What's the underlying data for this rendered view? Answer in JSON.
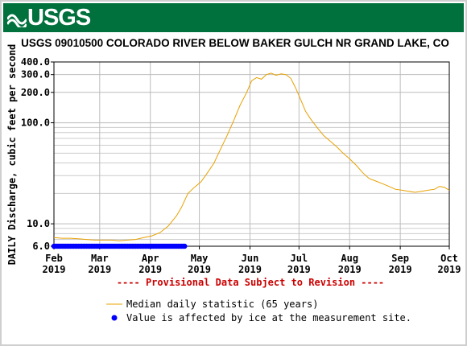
{
  "header": {
    "logo_text": "USGS",
    "brand_color": "#00703c"
  },
  "chart_data": {
    "type": "line",
    "title": "USGS 09010500 COLORADO RIVER BELOW BAKER GULCH NR GRAND LAKE, CO",
    "ylabel": "DAILY Discharge, cubic feet per second",
    "xlabel": "",
    "y_scale": "log",
    "ylim": [
      6.0,
      400.0
    ],
    "xlim": [
      "2019-02-01",
      "2019-10-01"
    ],
    "grid": true,
    "y_ticks": [
      {
        "value": 6,
        "label": "6.0"
      },
      {
        "value": 10,
        "label": "10.0"
      },
      {
        "value": 100,
        "label": "100.0"
      },
      {
        "value": 200,
        "label": "200.0"
      },
      {
        "value": 300,
        "label": "300.0"
      },
      {
        "value": 400,
        "label": "400.0"
      }
    ],
    "x_ticks": [
      {
        "date": "2019-02-01",
        "label": [
          "Feb",
          "2019"
        ]
      },
      {
        "date": "2019-03-01",
        "label": [
          "Mar",
          "2019"
        ]
      },
      {
        "date": "2019-04-01",
        "label": [
          "Apr",
          "2019"
        ]
      },
      {
        "date": "2019-05-01",
        "label": [
          "May",
          "2019"
        ]
      },
      {
        "date": "2019-06-01",
        "label": [
          "Jun",
          "2019"
        ]
      },
      {
        "date": "2019-07-01",
        "label": [
          "Jul",
          "2019"
        ]
      },
      {
        "date": "2019-08-01",
        "label": [
          "Aug",
          "2019"
        ]
      },
      {
        "date": "2019-09-01",
        "label": [
          "Sep",
          "2019"
        ]
      },
      {
        "date": "2019-10-01",
        "label": [
          "Oct",
          "2019"
        ]
      }
    ],
    "series": [
      {
        "name": "Median daily statistic (65 years)",
        "color": "#e8a000",
        "points": [
          [
            "2019-02-01",
            7.3
          ],
          [
            "2019-02-06",
            7.2
          ],
          [
            "2019-02-11",
            7.2
          ],
          [
            "2019-02-16",
            7.1
          ],
          [
            "2019-02-21",
            7.0
          ],
          [
            "2019-02-26",
            6.9
          ],
          [
            "2019-03-03",
            6.9
          ],
          [
            "2019-03-08",
            6.9
          ],
          [
            "2019-03-13",
            6.8
          ],
          [
            "2019-03-18",
            6.9
          ],
          [
            "2019-03-23",
            7.0
          ],
          [
            "2019-03-28",
            7.3
          ],
          [
            "2019-04-02",
            7.6
          ],
          [
            "2019-04-07",
            8.2
          ],
          [
            "2019-04-12",
            9.5
          ],
          [
            "2019-04-17",
            12.0
          ],
          [
            "2019-04-20",
            14.5
          ],
          [
            "2019-04-24",
            20.0
          ],
          [
            "2019-04-28",
            23.0
          ],
          [
            "2019-05-02",
            26.0
          ],
          [
            "2019-05-06",
            32.0
          ],
          [
            "2019-05-10",
            40.0
          ],
          [
            "2019-05-14",
            55.0
          ],
          [
            "2019-05-18",
            75.0
          ],
          [
            "2019-05-22",
            105.0
          ],
          [
            "2019-05-26",
            150.0
          ],
          [
            "2019-05-30",
            200.0
          ],
          [
            "2019-06-02",
            260.0
          ],
          [
            "2019-06-05",
            280.0
          ],
          [
            "2019-06-08",
            270.0
          ],
          [
            "2019-06-11",
            300.0
          ],
          [
            "2019-06-14",
            310.0
          ],
          [
            "2019-06-17",
            295.0
          ],
          [
            "2019-06-20",
            305.0
          ],
          [
            "2019-06-23",
            300.0
          ],
          [
            "2019-06-26",
            275.0
          ],
          [
            "2019-06-29",
            220.0
          ],
          [
            "2019-07-02",
            170.0
          ],
          [
            "2019-07-05",
            130.0
          ],
          [
            "2019-07-08",
            110.0
          ],
          [
            "2019-07-12",
            90.0
          ],
          [
            "2019-07-16",
            75.0
          ],
          [
            "2019-07-20",
            66.0
          ],
          [
            "2019-07-24",
            58.0
          ],
          [
            "2019-07-28",
            50.0
          ],
          [
            "2019-08-01",
            44.0
          ],
          [
            "2019-08-05",
            38.0
          ],
          [
            "2019-08-09",
            32.0
          ],
          [
            "2019-08-13",
            28.0
          ],
          [
            "2019-08-17",
            26.5
          ],
          [
            "2019-08-21",
            25.0
          ],
          [
            "2019-08-25",
            23.5
          ],
          [
            "2019-08-29",
            22.0
          ],
          [
            "2019-09-02",
            21.5
          ],
          [
            "2019-09-06",
            21.0
          ],
          [
            "2019-09-10",
            20.5
          ],
          [
            "2019-09-14",
            21.0
          ],
          [
            "2019-09-18",
            21.5
          ],
          [
            "2019-09-22",
            22.0
          ],
          [
            "2019-09-25",
            23.5
          ],
          [
            "2019-09-28",
            23.0
          ],
          [
            "2019-10-01",
            21.5
          ]
        ]
      }
    ],
    "ice_affected": {
      "name": "Value is affected by ice at the measurement site.",
      "color": "#0000ff",
      "start": "2019-02-01",
      "end": "2019-04-22",
      "value": 6.0
    },
    "annotation": "---- Provisional Data Subject to Revision ----",
    "annotation_color": "#cc0000",
    "legend_placement": "bottom"
  }
}
